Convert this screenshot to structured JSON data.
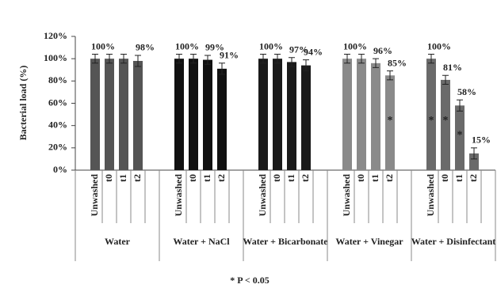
{
  "chart_data": {
    "type": "bar",
    "y_label": "Bacterial load (%)",
    "footnote": "* P < 0.05",
    "categories": [
      "Unwashed",
      "t0",
      "t1",
      "t2"
    ],
    "ylim": [
      0,
      120
    ],
    "yticks": [
      {
        "value": 0,
        "label": "0%"
      },
      {
        "value": 20,
        "label": "20%"
      },
      {
        "value": 40,
        "label": "40%"
      },
      {
        "value": 60,
        "label": "60%"
      },
      {
        "value": 80,
        "label": "80%"
      },
      {
        "value": 100,
        "label": "100%"
      },
      {
        "value": 120,
        "label": "120%"
      }
    ],
    "grid": false,
    "series": [
      {
        "name": "Water",
        "color": "#555555",
        "values": [
          100,
          100,
          100,
          98
        ],
        "errors": [
          4,
          4,
          4,
          5
        ],
        "value_labels": [
          "100%",
          null,
          null,
          "98%"
        ],
        "markers": [
          null,
          null,
          null,
          null
        ]
      },
      {
        "name": "Water + NaCl",
        "color": "#111111",
        "values": [
          100,
          100,
          99,
          91
        ],
        "errors": [
          4,
          4,
          4,
          5
        ],
        "value_labels": [
          "100%",
          null,
          "99%",
          "91%"
        ],
        "markers": [
          null,
          null,
          null,
          null
        ]
      },
      {
        "name": "Water + Bicarbonate",
        "color": "#1a1a1a",
        "values": [
          100,
          100,
          97,
          94
        ],
        "errors": [
          4,
          4,
          4,
          5
        ],
        "value_labels": [
          "100%",
          null,
          "97%",
          "94%"
        ],
        "markers": [
          null,
          null,
          null,
          null
        ]
      },
      {
        "name": "Water + Vinegar",
        "color": "#8a8a8a",
        "values": [
          100,
          100,
          96,
          85
        ],
        "errors": [
          4,
          4,
          4,
          4
        ],
        "value_labels": [
          "100%",
          null,
          "96%",
          "85%"
        ],
        "markers": [
          null,
          null,
          null,
          "*"
        ]
      },
      {
        "name": "Water + Disinfectant",
        "color": "#6a6a6a",
        "values": [
          100,
          81,
          58,
          15
        ],
        "errors": [
          4,
          4,
          5,
          5
        ],
        "value_labels": [
          "100%",
          "81%",
          "58%",
          "15%"
        ],
        "markers": [
          "*",
          "*",
          "*",
          null
        ]
      }
    ]
  }
}
